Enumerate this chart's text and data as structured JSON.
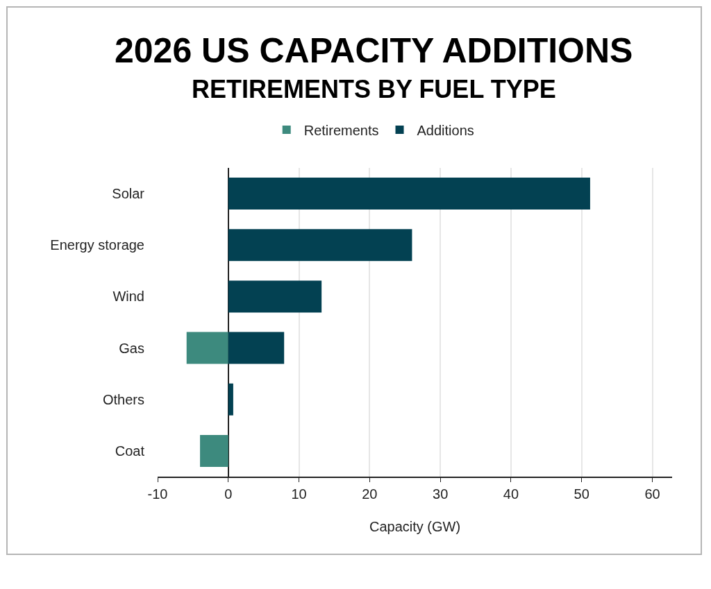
{
  "chart_data": {
    "type": "bar",
    "orientation": "horizontal",
    "title": "2026 US CAPACITY ADDITIONS",
    "subtitle": "RETIREMENTS BY FUEL TYPE",
    "xlabel": "Capacity (GW)",
    "categories": [
      "Solar",
      "Energy storage",
      "Wind",
      "Gas",
      "Others",
      "Coat"
    ],
    "series": [
      {
        "name": "Retirements",
        "color": "#3d8a7e",
        "values": [
          null,
          null,
          null,
          -5.9,
          null,
          -4
        ]
      },
      {
        "name": "Additions",
        "color": "#034152",
        "values": [
          51.2,
          26,
          13.2,
          7.9,
          0.7,
          null
        ]
      }
    ],
    "xlim": [
      -10,
      62.8
    ],
    "xticks": [
      -10,
      0,
      10,
      20,
      30,
      40,
      50,
      60
    ],
    "grid": "x",
    "legend": "top"
  }
}
